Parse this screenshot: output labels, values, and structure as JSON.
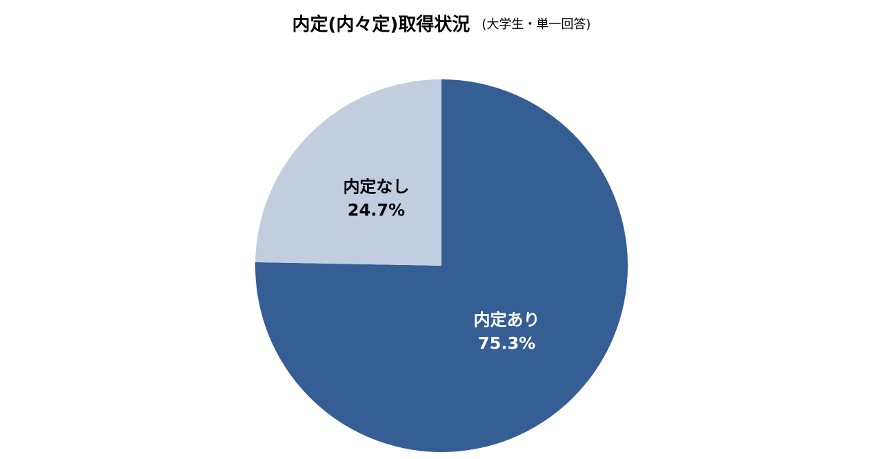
{
  "chart_data": {
    "type": "pie",
    "title": "内定(内々定)取得状況",
    "subtitle": "(大学生・単一回答)",
    "categories": [
      "内定あり",
      "内定なし"
    ],
    "values": [
      75.3,
      24.7
    ],
    "value_labels": [
      "75.3%",
      "24.7%"
    ],
    "colors": [
      "#355e95",
      "#c2cde0"
    ],
    "label_colors": [
      "#ffffff",
      "#000000"
    ]
  }
}
